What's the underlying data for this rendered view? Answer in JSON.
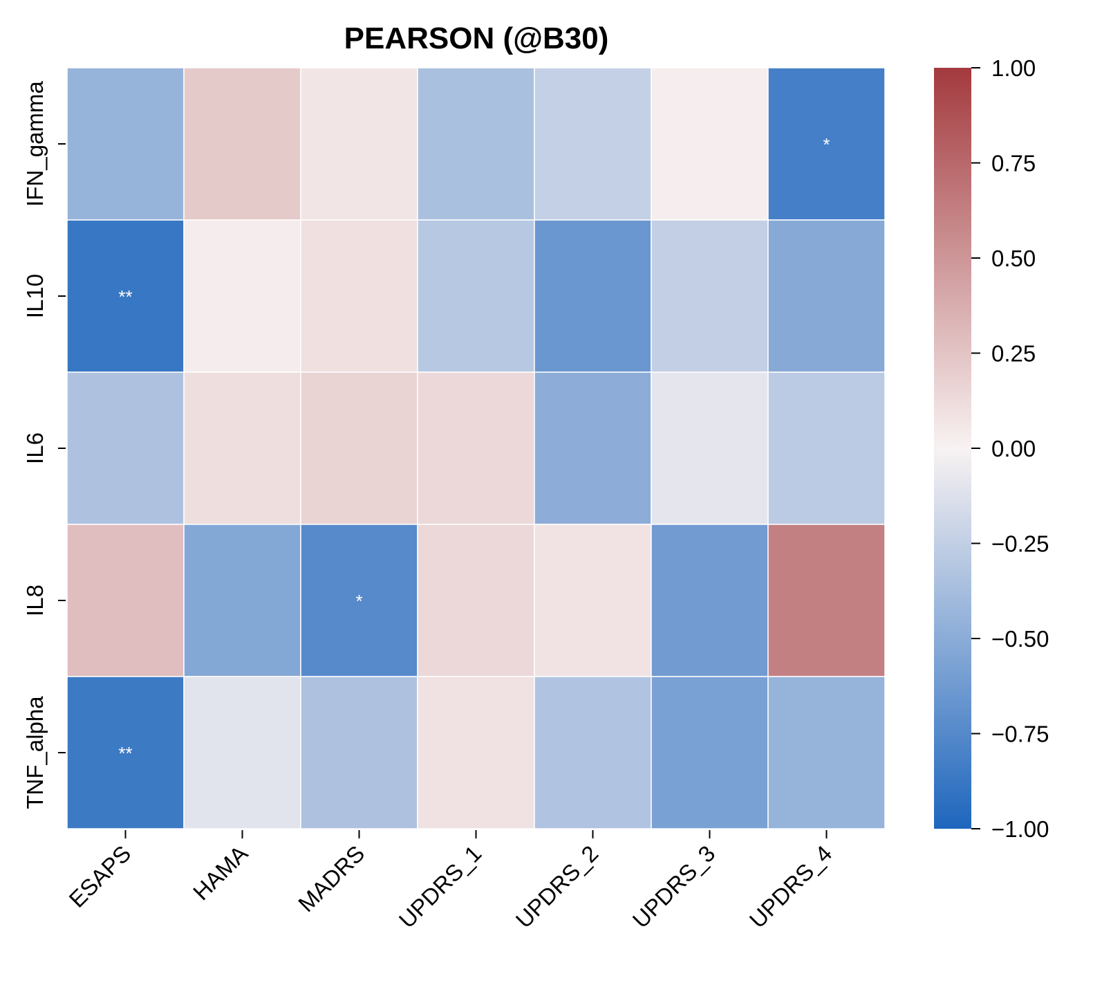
{
  "chart_data": {
    "type": "heatmap",
    "title": "PEARSON (@B30)",
    "xlabel": "",
    "ylabel": "",
    "x_categories": [
      "ESAPS",
      "HAMA",
      "MADRS",
      "UPDRS_1",
      "UPDRS_2",
      "UPDRS_3",
      "UPDRS_4"
    ],
    "y_categories": [
      "IFN_gamma",
      "IL10",
      "IL6",
      "IL8",
      "TNF_alpha"
    ],
    "values": [
      [
        -0.45,
        0.22,
        0.07,
        -0.36,
        -0.24,
        0.02,
        -0.82
      ],
      [
        -0.88,
        0.03,
        0.1,
        -0.3,
        -0.65,
        -0.25,
        -0.52
      ],
      [
        -0.34,
        0.11,
        0.17,
        0.14,
        -0.49,
        -0.09,
        -0.28
      ],
      [
        0.28,
        -0.53,
        -0.74,
        0.14,
        0.08,
        -0.62,
        0.62
      ],
      [
        -0.86,
        -0.1,
        -0.34,
        0.09,
        -0.33,
        -0.58,
        -0.45
      ]
    ],
    "annotations": [
      [
        "",
        "",
        "",
        "",
        "",
        "",
        "*"
      ],
      [
        "**",
        "",
        "",
        "",
        "",
        "",
        ""
      ],
      [
        "",
        "",
        "",
        "",
        "",
        "",
        ""
      ],
      [
        "",
        "",
        "*",
        "",
        "",
        "",
        ""
      ],
      [
        "**",
        "",
        "",
        "",
        "",
        "",
        ""
      ]
    ],
    "colorbar": {
      "vmin": -1.0,
      "vmax": 1.0,
      "ticks": [
        1.0,
        0.75,
        0.5,
        0.25,
        0.0,
        -0.25,
        -0.5,
        -0.75,
        -1.0
      ],
      "tick_labels": [
        "1.00",
        "0.75",
        "0.50",
        "0.25",
        "0.00",
        "−0.25",
        "−0.50",
        "−0.75",
        "−1.00"
      ],
      "colors": {
        "low": "#1e66bd",
        "mid": "#f8f2f2",
        "high": "#a33a3e"
      }
    },
    "grid": true
  }
}
